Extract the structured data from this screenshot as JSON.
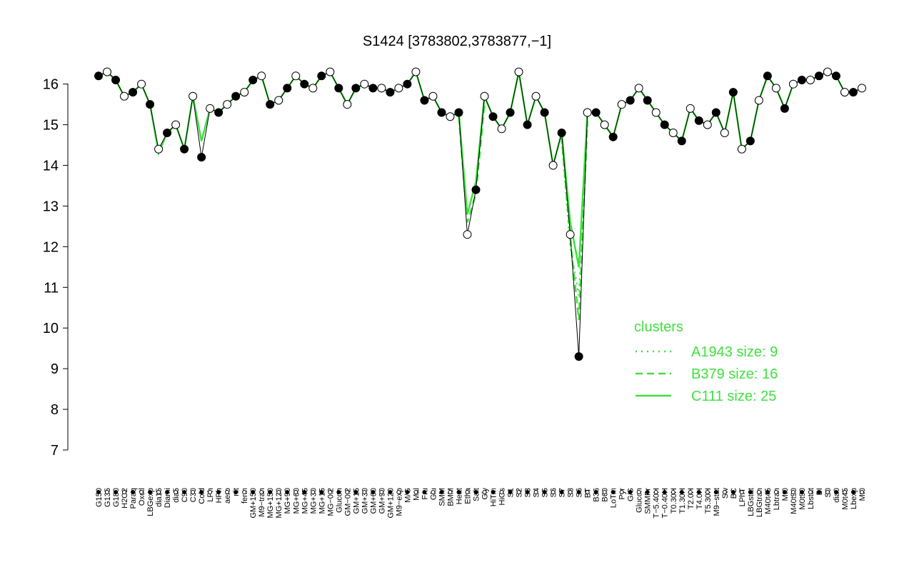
{
  "chart_data": {
    "type": "line",
    "title": "S1424 [3783802,3783877,−1]",
    "categories": [
      "G150",
      "G135",
      "G180",
      "H2O2",
      "Paraq",
      "Oxctl",
      "LBGexp",
      "dia15",
      "Diami",
      "dia5",
      "C90",
      "C30",
      "Cold",
      "LPh",
      "HPh",
      "aero",
      "nit",
      "ferm",
      "GM+150",
      "M9−tran",
      "MG+150",
      "MG+120",
      "MG+90",
      "MG+60",
      "MG+45",
      "MG+30",
      "MG+15",
      "MG−0.2",
      "Glucon",
      "GM−0.2",
      "GM+15",
      "GM+30",
      "GM+60",
      "GM+90",
      "GM+120",
      "M9−exp",
      "M/G",
      "Mal",
      "Fru",
      "Glu",
      "SMM",
      "BMM",
      "Heat",
      "Etha",
      "Salt",
      "Gly",
      "HiTm",
      "HiOs",
      "S1",
      "S2",
      "S3",
      "S4",
      "S5",
      "S6",
      "S7",
      "S8",
      "S6",
      "BT",
      "B36",
      "B60",
      "LoTm",
      "Pyr",
      "G/S",
      "Glucon",
      "SMMPr",
      "T−5.40H",
      "T−0.40H",
      "T0.30H",
      "T1.30H",
      "T2.0H",
      "T4.0H",
      "T5.30H",
      "M9−stat",
      "Sw",
      "BC",
      "LPhT",
      "LBGstat",
      "LBGtran",
      "M40t45",
      "Lbtran",
      "Mt0",
      "M40t90",
      "M0t90",
      "Lbstat",
      "BI",
      "S0",
      "dia0",
      "M0t45",
      "Lbexp",
      "Mt0"
    ],
    "values": [
      16.2,
      16.3,
      16.1,
      15.7,
      15.8,
      16.0,
      15.5,
      14.4,
      14.8,
      15.0,
      14.4,
      15.7,
      14.2,
      15.4,
      15.3,
      15.5,
      15.7,
      15.8,
      16.1,
      16.2,
      15.5,
      15.6,
      15.9,
      16.2,
      16.0,
      15.9,
      16.2,
      16.3,
      15.9,
      15.5,
      15.9,
      16.0,
      15.9,
      15.9,
      15.8,
      15.9,
      16.0,
      16.3,
      15.6,
      15.7,
      15.3,
      15.2,
      15.3,
      12.3,
      13.4,
      15.7,
      15.2,
      14.9,
      15.3,
      16.3,
      15.0,
      15.7,
      15.3,
      14.0,
      14.8,
      12.3,
      9.3,
      15.3,
      15.3,
      15.0,
      14.7,
      15.5,
      15.6,
      15.9,
      15.6,
      15.3,
      15.0,
      14.8,
      14.6,
      15.4,
      15.1,
      15.0,
      15.3,
      14.8,
      15.8,
      14.4,
      14.6,
      15.6,
      16.2,
      15.9,
      15.4,
      16.0,
      16.1,
      16.1,
      16.2,
      16.3,
      16.2,
      15.8,
      15.8,
      15.9
    ],
    "series": [
      {
        "name": "A1943 size: 9",
        "color": "#3fe03f",
        "dash": "dotted",
        "values": [
          null,
          null,
          null,
          null,
          null,
          null,
          null,
          null,
          null,
          null,
          null,
          null,
          null,
          null,
          null,
          null,
          null,
          null,
          null,
          null,
          null,
          null,
          null,
          null,
          null,
          null,
          null,
          null,
          null,
          null,
          null,
          null,
          null,
          null,
          null,
          null,
          null,
          null,
          null,
          null,
          null,
          null,
          null,
          null,
          null,
          null,
          null,
          null,
          null,
          null,
          null,
          null,
          null,
          null,
          14.6,
          12.0,
          10.8,
          15.0,
          null,
          null,
          null,
          null,
          null,
          null,
          null,
          null,
          null,
          null,
          null,
          null,
          null,
          null,
          null,
          null,
          null,
          null,
          null,
          null,
          null,
          null,
          null,
          null,
          null,
          null,
          null,
          null,
          null,
          null,
          null,
          null
        ]
      },
      {
        "name": "B379 size: 16",
        "color": "#3fe03f",
        "dash": "dashed",
        "values": [
          null,
          null,
          null,
          null,
          null,
          null,
          null,
          null,
          null,
          null,
          null,
          null,
          null,
          null,
          null,
          null,
          null,
          null,
          null,
          null,
          null,
          null,
          null,
          null,
          null,
          null,
          null,
          null,
          null,
          null,
          null,
          null,
          null,
          null,
          null,
          null,
          null,
          null,
          null,
          null,
          null,
          null,
          15.2,
          12.6,
          13.3,
          15.5,
          null,
          null,
          null,
          null,
          null,
          null,
          null,
          null,
          14.7,
          12.2,
          10.2,
          15.1,
          null,
          null,
          null,
          null,
          null,
          null,
          null,
          null,
          null,
          null,
          null,
          null,
          null,
          null,
          null,
          null,
          null,
          null,
          null,
          null,
          null,
          null,
          null,
          null,
          null,
          null,
          null,
          null,
          null,
          null,
          null,
          null
        ]
      },
      {
        "name": "C111 size: 25",
        "color": "#3fe03f",
        "dash": "solid",
        "values": [
          16.2,
          16.3,
          16.1,
          15.7,
          15.8,
          16.0,
          15.5,
          14.3,
          14.8,
          15.0,
          14.4,
          15.7,
          14.6,
          15.4,
          15.3,
          15.5,
          15.7,
          15.8,
          16.1,
          16.2,
          15.5,
          15.6,
          15.9,
          16.2,
          16.0,
          15.9,
          16.2,
          16.3,
          15.9,
          15.5,
          15.9,
          16.0,
          15.9,
          15.9,
          15.8,
          15.9,
          16.0,
          16.3,
          15.6,
          15.7,
          15.3,
          15.2,
          15.3,
          12.8,
          13.6,
          15.7,
          15.2,
          14.9,
          15.3,
          16.3,
          15.0,
          15.7,
          15.3,
          14.0,
          14.8,
          12.6,
          11.5,
          15.3,
          15.3,
          15.0,
          14.7,
          15.5,
          15.6,
          15.9,
          15.6,
          15.3,
          15.0,
          14.8,
          14.6,
          15.4,
          15.1,
          15.0,
          15.3,
          14.8,
          15.8,
          14.4,
          14.6,
          15.6,
          16.2,
          15.9,
          15.4,
          16.0,
          16.1,
          16.1,
          16.2,
          16.3,
          16.2,
          15.8,
          15.8,
          15.9
        ]
      }
    ],
    "legend_title": "clusters",
    "ylim": [
      7,
      16.75
    ],
    "yticks": [
      7,
      8,
      9,
      10,
      11,
      12,
      13,
      14,
      15,
      16
    ]
  }
}
